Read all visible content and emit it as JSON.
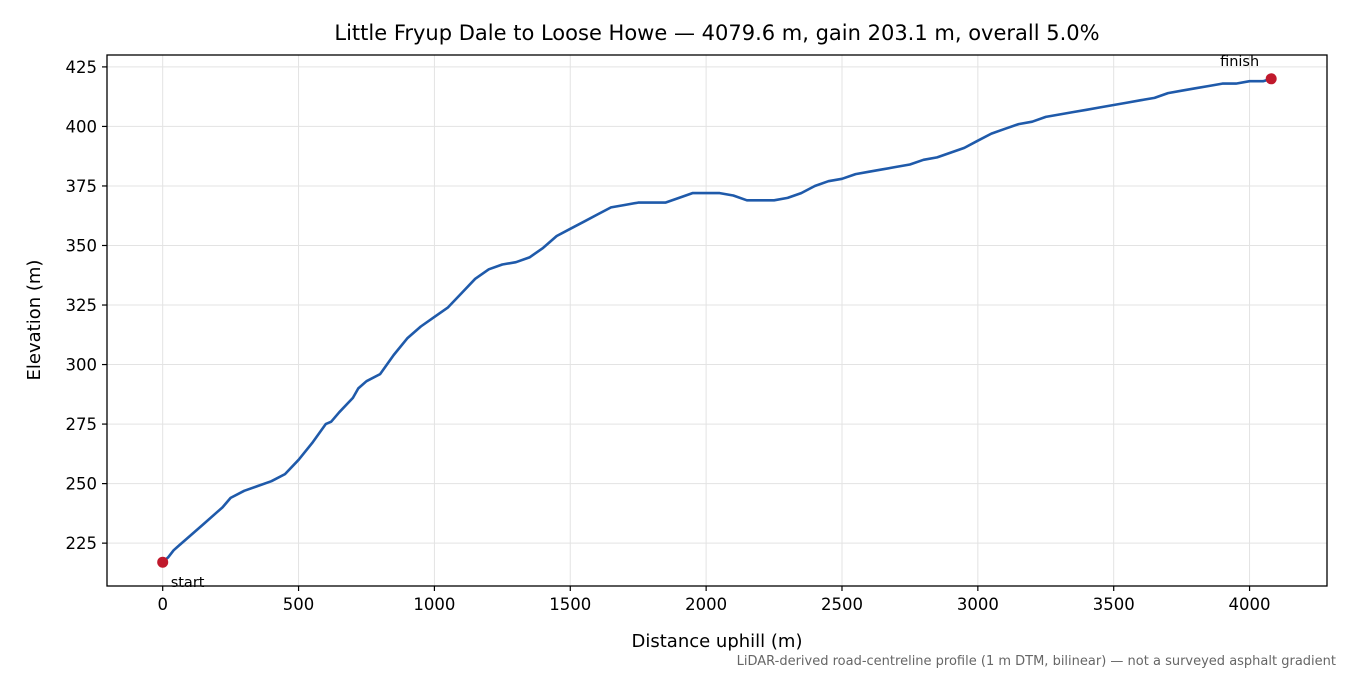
{
  "chart_data": {
    "type": "line",
    "title": "Little Fryup Dale to Loose Howe — 4079.6 m, gain 203.1 m, overall 5.0%",
    "xlabel": "Distance uphill (m)",
    "ylabel": "Elevation (m)",
    "xlim": [
      -205,
      4285
    ],
    "ylim": [
      207,
      430
    ],
    "xticks": [
      0,
      500,
      1000,
      1500,
      2000,
      2500,
      3000,
      3500,
      4000
    ],
    "yticks": [
      225,
      250,
      275,
      300,
      325,
      350,
      375,
      400,
      425
    ],
    "grid": true,
    "colors": {
      "line": "#1f5aaa",
      "marker": "#c0192c",
      "grid": "#e3e3e3",
      "footnote": "#666666"
    },
    "series": [
      {
        "x": [
          0,
          20,
          40,
          60,
          100,
          150,
          200,
          220,
          250,
          300,
          350,
          400,
          450,
          500,
          550,
          600,
          620,
          650,
          700,
          720,
          750,
          800,
          850,
          900,
          950,
          1000,
          1050,
          1100,
          1150,
          1200,
          1250,
          1300,
          1350,
          1400,
          1450,
          1500,
          1550,
          1600,
          1650,
          1700,
          1750,
          1800,
          1850,
          1900,
          1950,
          2000,
          2050,
          2100,
          2150,
          2200,
          2250,
          2300,
          2350,
          2400,
          2450,
          2500,
          2550,
          2600,
          2650,
          2700,
          2750,
          2800,
          2850,
          2900,
          2950,
          3000,
          3050,
          3100,
          3150,
          3200,
          3250,
          3300,
          3350,
          3400,
          3450,
          3500,
          3550,
          3600,
          3650,
          3700,
          3750,
          3800,
          3850,
          3900,
          3950,
          4000,
          4050,
          4079.6
        ],
        "y": [
          217,
          219,
          222,
          224,
          228,
          233,
          238,
          240,
          244,
          247,
          249,
          251,
          254,
          260,
          267,
          275,
          276,
          280,
          286,
          290,
          293,
          296,
          304,
          311,
          316,
          320,
          324,
          330,
          336,
          340,
          342,
          343,
          345,
          349,
          354,
          357,
          360,
          363,
          366,
          367,
          368,
          368,
          368,
          370,
          372,
          372,
          372,
          371,
          369,
          369,
          369,
          370,
          372,
          375,
          377,
          378,
          380,
          381,
          382,
          383,
          384,
          386,
          387,
          389,
          391,
          394,
          397,
          399,
          401,
          402,
          404,
          405,
          406,
          407,
          408,
          409,
          410,
          411,
          412,
          414,
          415,
          416,
          417,
          418,
          418,
          419,
          419,
          420
        ]
      }
    ],
    "markers": [
      {
        "label": "start",
        "x": 0,
        "y": 217
      },
      {
        "label": "finish",
        "x": 4079.6,
        "y": 420
      }
    ],
    "footnote": "LiDAR-derived road-centreline profile (1 m DTM, bilinear) — not a surveyed asphalt gradient"
  }
}
